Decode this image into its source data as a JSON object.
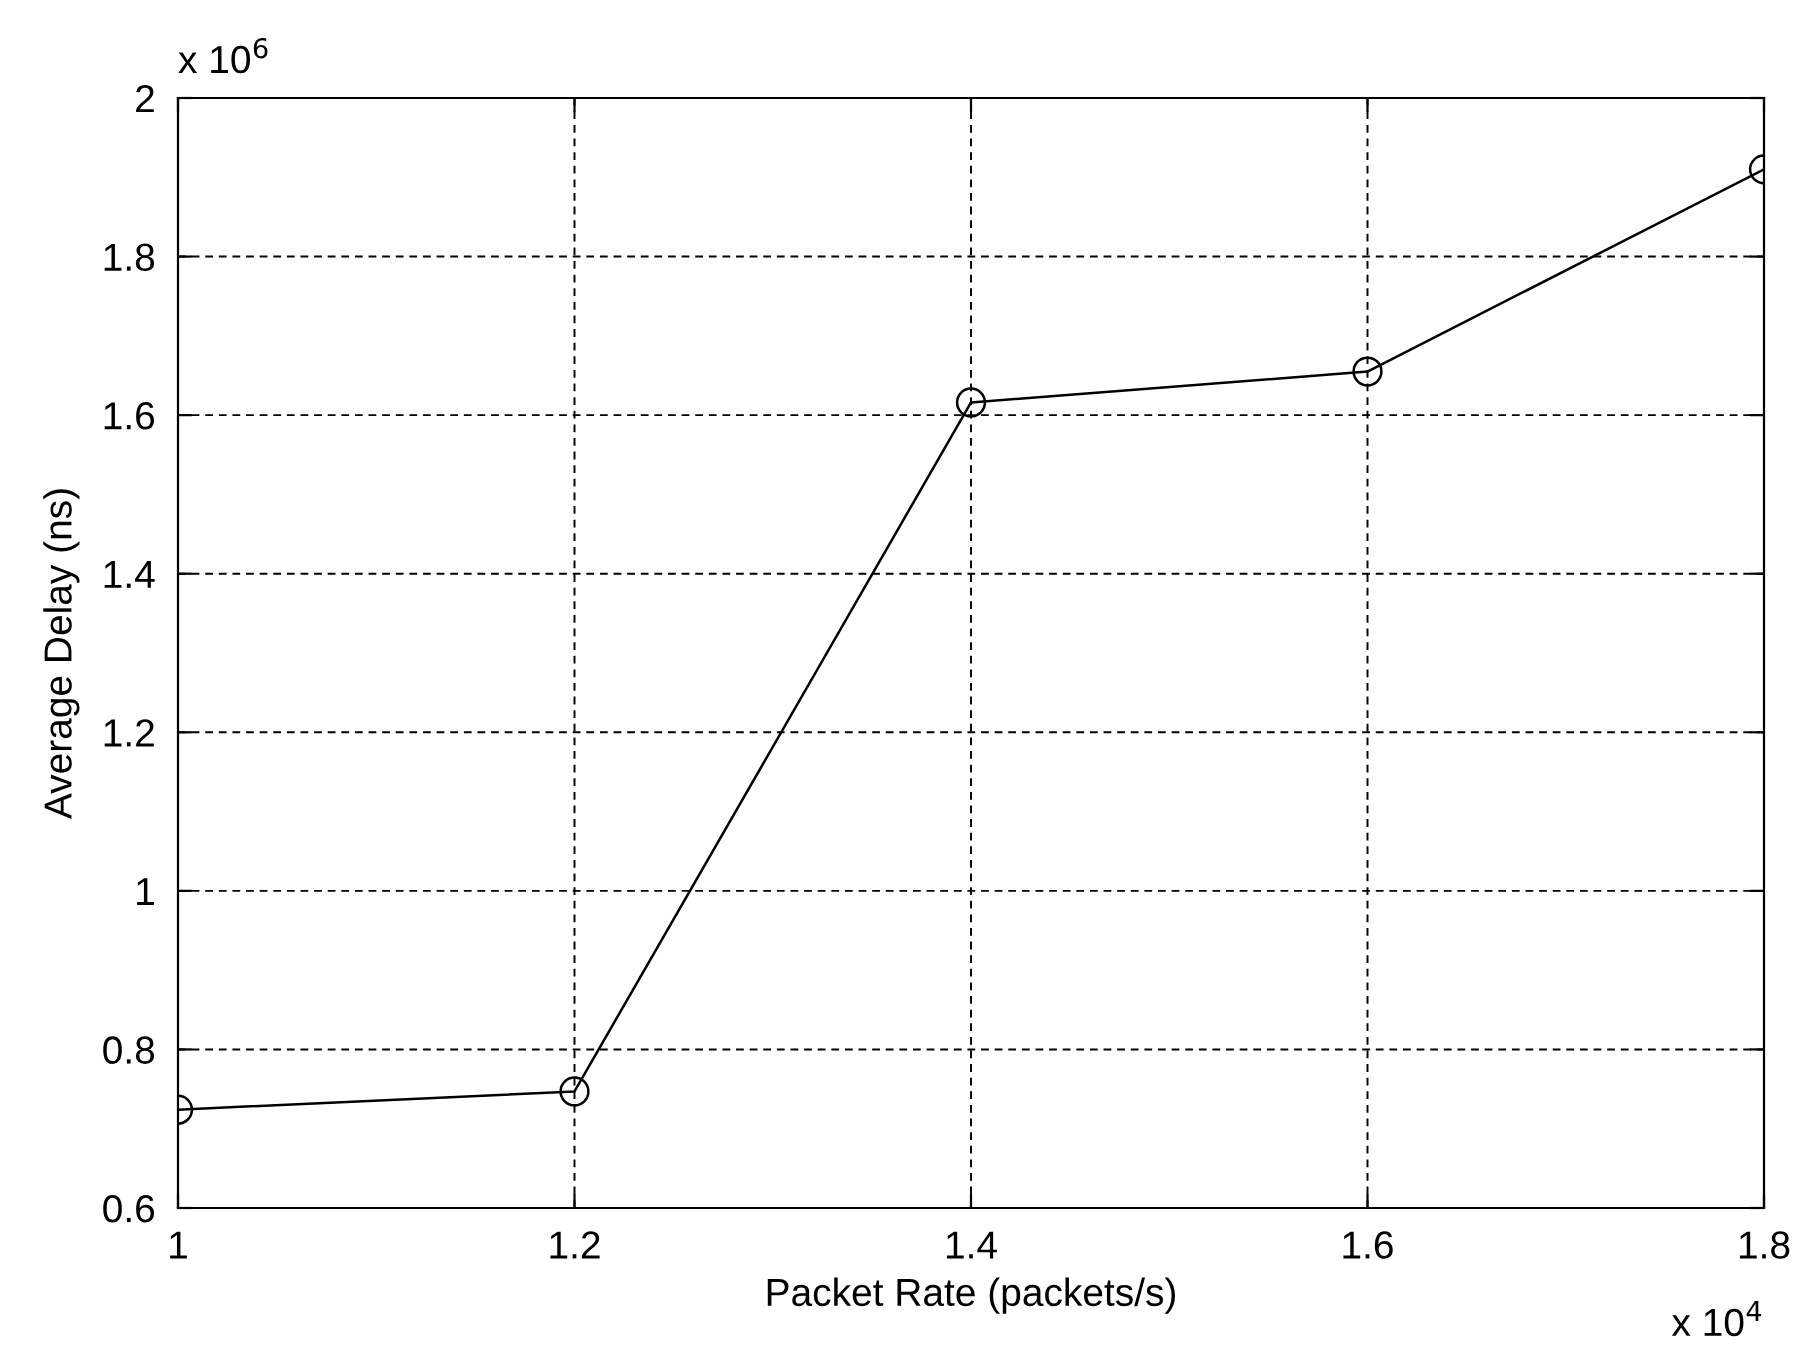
{
  "chart_data": {
    "type": "line",
    "xlabel": "Packet Rate (packets/s)",
    "ylabel": "Average Delay (ns)",
    "x": [
      1,
      1.2,
      1.4,
      1.6,
      1.8
    ],
    "series": [
      {
        "color": "#000000",
        "values": [
          0.724,
          0.747,
          1.616,
          1.655,
          1.91
        ]
      }
    ],
    "xlim": [
      1,
      1.8
    ],
    "xticks": [
      1,
      1.2,
      1.4,
      1.6,
      1.8
    ],
    "ylim": [
      0.6,
      2
    ],
    "yticks": [
      0.6,
      0.8,
      1,
      1.2,
      1.4,
      1.6,
      1.8,
      2
    ],
    "annotations": [
      "x 10$^{6}$",
      "x 10$^{4}$"
    ],
    "grid": true,
    "marker": "circle",
    "line_style": "solid"
  }
}
